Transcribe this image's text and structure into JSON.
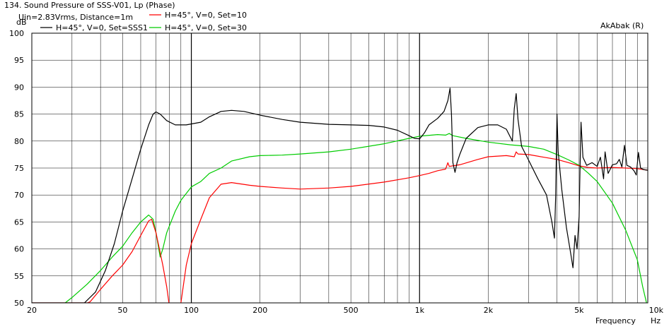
{
  "chart_data": {
    "type": "line",
    "title": "134. Sound Pressure of SSS-V01, Lp (Phase)",
    "subtitle": "Uin=2.83Vrms, Distance=1m",
    "watermark": "AkAbak (R)",
    "ylabel": "dB",
    "xlabel": "Frequency",
    "xunit": "Hz",
    "x_scale": "log",
    "xlim": [
      20,
      10000
    ],
    "ylim": [
      50,
      100
    ],
    "x_ticks": [
      {
        "value": 20,
        "label": "20"
      },
      {
        "value": 50,
        "label": "50"
      },
      {
        "value": 100,
        "label": "100"
      },
      {
        "value": 200,
        "label": "200"
      },
      {
        "value": 500,
        "label": "500"
      },
      {
        "value": 1000,
        "label": "1k"
      },
      {
        "value": 2000,
        "label": "2k"
      },
      {
        "value": 5000,
        "label": "5k"
      },
      {
        "value": 10000,
        "label": "10k"
      }
    ],
    "y_ticks": [
      100,
      95,
      90,
      85,
      80,
      75,
      70,
      65,
      60,
      55,
      50
    ],
    "grid": true,
    "legend_position": "top-left",
    "series": [
      {
        "name": "H=45°, V=0, Set=SSS1",
        "color": "#000000",
        "points": [
          [
            20,
            50
          ],
          [
            34,
            50
          ],
          [
            38,
            52
          ],
          [
            42,
            56
          ],
          [
            46,
            61
          ],
          [
            50,
            67
          ],
          [
            55,
            73
          ],
          [
            60,
            78.5
          ],
          [
            65,
            83
          ],
          [
            68,
            85
          ],
          [
            70,
            85.4
          ],
          [
            73,
            85
          ],
          [
            78,
            83.8
          ],
          [
            85,
            83
          ],
          [
            95,
            83
          ],
          [
            110,
            83.5
          ],
          [
            120,
            84.5
          ],
          [
            135,
            85.5
          ],
          [
            150,
            85.7
          ],
          [
            170,
            85.5
          ],
          [
            200,
            84.8
          ],
          [
            250,
            84
          ],
          [
            300,
            83.5
          ],
          [
            400,
            83.1
          ],
          [
            500,
            83
          ],
          [
            600,
            82.9
          ],
          [
            700,
            82.6
          ],
          [
            800,
            82
          ],
          [
            900,
            81
          ],
          [
            950,
            80.5
          ],
          [
            1000,
            80.4
          ],
          [
            1050,
            81.5
          ],
          [
            1100,
            83
          ],
          [
            1200,
            84.2
          ],
          [
            1280,
            85.5
          ],
          [
            1330,
            87.5
          ],
          [
            1360,
            89.8
          ],
          [
            1380,
            85
          ],
          [
            1400,
            76
          ],
          [
            1430,
            74.2
          ],
          [
            1460,
            76
          ],
          [
            1500,
            77.5
          ],
          [
            1600,
            80.5
          ],
          [
            1800,
            82.5
          ],
          [
            2000,
            83
          ],
          [
            2200,
            83
          ],
          [
            2400,
            82.2
          ],
          [
            2550,
            80
          ],
          [
            2600,
            86
          ],
          [
            2650,
            88.8
          ],
          [
            2700,
            84
          ],
          [
            2800,
            79
          ],
          [
            3000,
            76.5
          ],
          [
            3300,
            73
          ],
          [
            3600,
            70
          ],
          [
            3800,
            65
          ],
          [
            3900,
            62
          ],
          [
            3950,
            70
          ],
          [
            4000,
            85
          ],
          [
            4050,
            78
          ],
          [
            4200,
            71
          ],
          [
            4400,
            64
          ],
          [
            4600,
            59
          ],
          [
            4700,
            56.5
          ],
          [
            4800,
            62.5
          ],
          [
            4900,
            60
          ],
          [
            5000,
            66
          ],
          [
            5050,
            75
          ],
          [
            5100,
            83.5
          ],
          [
            5200,
            77
          ],
          [
            5400,
            75.5
          ],
          [
            5700,
            76
          ],
          [
            6000,
            75.3
          ],
          [
            6200,
            77
          ],
          [
            6400,
            73
          ],
          [
            6500,
            78
          ],
          [
            6700,
            74
          ],
          [
            7000,
            75.6
          ],
          [
            7300,
            75.8
          ],
          [
            7500,
            76.6
          ],
          [
            7700,
            75.2
          ],
          [
            7900,
            79.2
          ],
          [
            8100,
            75.5
          ],
          [
            8400,
            75.2
          ],
          [
            8700,
            74.5
          ],
          [
            8900,
            73.7
          ],
          [
            9100,
            77.9
          ],
          [
            9300,
            75
          ],
          [
            9600,
            74.7
          ],
          [
            10000,
            74.6
          ]
        ]
      },
      {
        "name": "H=45°, V=0, Set=10",
        "color": "#ff0000",
        "points": [
          [
            20,
            50
          ],
          [
            35,
            50
          ],
          [
            36,
            50.2
          ],
          [
            40,
            52.5
          ],
          [
            45,
            55
          ],
          [
            50,
            57
          ],
          [
            55,
            59.5
          ],
          [
            60,
            62.5
          ],
          [
            65,
            65.2
          ],
          [
            67,
            65.5
          ],
          [
            70,
            63
          ],
          [
            75,
            57
          ],
          [
            78,
            53
          ],
          [
            81,
            48
          ],
          [
            84,
            44
          ],
          [
            88,
            46
          ],
          [
            90,
            50
          ],
          [
            95,
            57
          ],
          [
            100,
            61
          ],
          [
            110,
            65.5
          ],
          [
            120,
            69.5
          ],
          [
            135,
            72
          ],
          [
            150,
            72.3
          ],
          [
            180,
            71.8
          ],
          [
            200,
            71.6
          ],
          [
            250,
            71.3
          ],
          [
            300,
            71.1
          ],
          [
            400,
            71.3
          ],
          [
            500,
            71.6
          ],
          [
            700,
            72.4
          ],
          [
            900,
            73.2
          ],
          [
            1000,
            73.6
          ],
          [
            1100,
            74
          ],
          [
            1200,
            74.5
          ],
          [
            1300,
            74.8
          ],
          [
            1330,
            76
          ],
          [
            1350,
            75.3
          ],
          [
            1400,
            75.4
          ],
          [
            1500,
            75.6
          ],
          [
            1800,
            76.6
          ],
          [
            2000,
            77.1
          ],
          [
            2400,
            77.3
          ],
          [
            2600,
            77.1
          ],
          [
            2650,
            78
          ],
          [
            2700,
            77.6
          ],
          [
            3000,
            77.5
          ],
          [
            3500,
            77
          ],
          [
            4000,
            76.6
          ],
          [
            4500,
            76
          ],
          [
            5000,
            75.4
          ],
          [
            5500,
            75.1
          ],
          [
            6000,
            75
          ],
          [
            7000,
            75.1
          ],
          [
            8000,
            75
          ],
          [
            9000,
            74.9
          ],
          [
            10000,
            74.6
          ]
        ]
      },
      {
        "name": "H=45°, V=0, Set=30",
        "color": "#00cc00",
        "points": [
          [
            20,
            48
          ],
          [
            28,
            50
          ],
          [
            30,
            51
          ],
          [
            35,
            53.5
          ],
          [
            40,
            56
          ],
          [
            45,
            58.5
          ],
          [
            50,
            60.5
          ],
          [
            55,
            63
          ],
          [
            60,
            65
          ],
          [
            65,
            66.3
          ],
          [
            68,
            65.5
          ],
          [
            70,
            63
          ],
          [
            73,
            58.5
          ],
          [
            75,
            60
          ],
          [
            78,
            63
          ],
          [
            85,
            67
          ],
          [
            90,
            69
          ],
          [
            100,
            71.5
          ],
          [
            110,
            72.5
          ],
          [
            120,
            74
          ],
          [
            135,
            75
          ],
          [
            150,
            76.3
          ],
          [
            180,
            77.1
          ],
          [
            200,
            77.3
          ],
          [
            250,
            77.4
          ],
          [
            300,
            77.6
          ],
          [
            400,
            78
          ],
          [
            500,
            78.5
          ],
          [
            700,
            79.5
          ],
          [
            900,
            80.5
          ],
          [
            1000,
            80.9
          ],
          [
            1200,
            81.2
          ],
          [
            1300,
            81.1
          ],
          [
            1350,
            81.4
          ],
          [
            1400,
            81
          ],
          [
            1600,
            80.5
          ],
          [
            2000,
            79.8
          ],
          [
            2500,
            79.3
          ],
          [
            3000,
            79
          ],
          [
            3500,
            78.5
          ],
          [
            4000,
            77.5
          ],
          [
            4500,
            76.5
          ],
          [
            5000,
            75.5
          ],
          [
            5500,
            74
          ],
          [
            6000,
            72.5
          ],
          [
            7000,
            68.5
          ],
          [
            8000,
            63.5
          ],
          [
            9000,
            58
          ],
          [
            9500,
            53
          ],
          [
            10000,
            49
          ]
        ]
      }
    ]
  }
}
